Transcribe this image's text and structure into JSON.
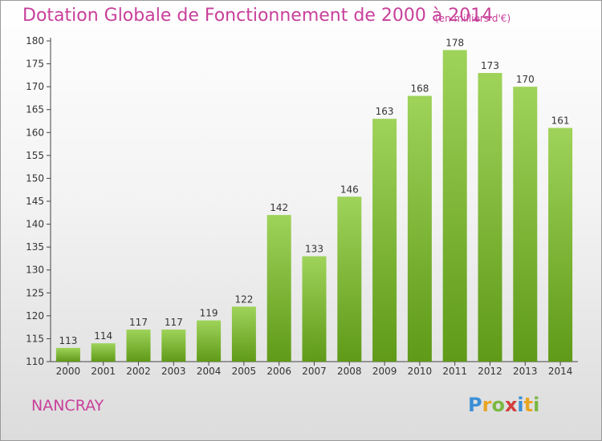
{
  "title": "Dotation Globale de Fonctionnement de 2000 à 2014",
  "unit_note": "(en milliers d'€)",
  "commune": "NANCRAY",
  "logo": {
    "letters": [
      "P",
      "r",
      "o",
      "x",
      "i",
      "t",
      "i"
    ],
    "colors": [
      "#3c8fd6",
      "#e8a524",
      "#7ab843",
      "#d33d3d",
      "#3c8fd6",
      "#e8a524",
      "#7ab843"
    ]
  },
  "chart_data": {
    "type": "bar",
    "title": "Dotation Globale de Fonctionnement de 2000 à 2014",
    "subtitle": "(en milliers d'€)",
    "categories": [
      "2000",
      "2001",
      "2002",
      "2003",
      "2004",
      "2005",
      "2006",
      "2007",
      "2008",
      "2009",
      "2010",
      "2011",
      "2012",
      "2013",
      "2014"
    ],
    "values": [
      113,
      114,
      117,
      117,
      119,
      122,
      142,
      133,
      146,
      163,
      168,
      178,
      173,
      170,
      161
    ],
    "ylim": [
      110,
      180
    ],
    "yticks": [
      110,
      115,
      120,
      125,
      130,
      135,
      140,
      145,
      150,
      155,
      160,
      165,
      170,
      175,
      180
    ],
    "xlabel": "",
    "ylabel": "",
    "grid": false,
    "bar_color_top": "#9fd35a",
    "bar_color_bottom": "#5f9a18"
  }
}
